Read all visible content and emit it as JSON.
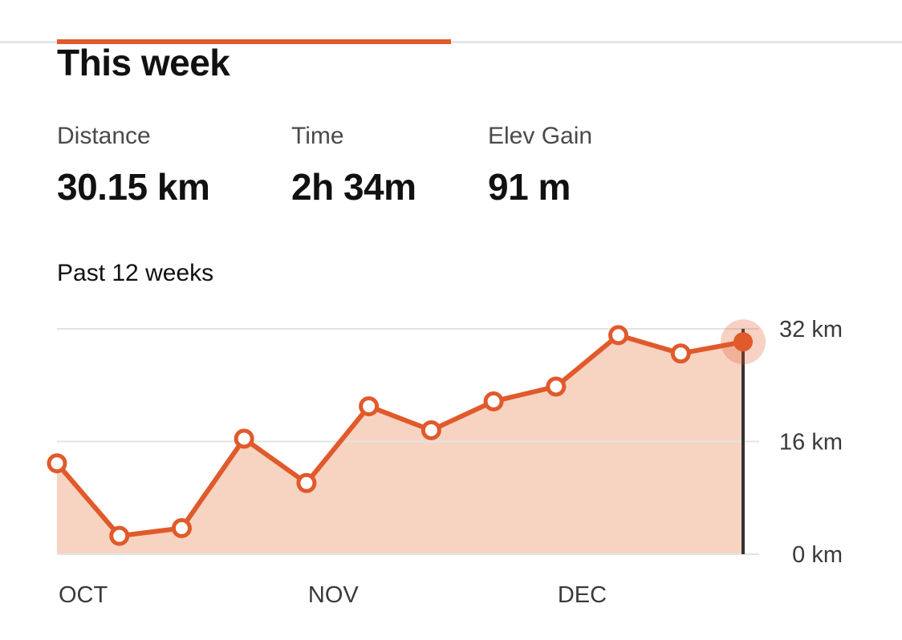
{
  "header": {
    "title": "This week"
  },
  "stats": [
    {
      "label": "Distance",
      "value": "30.15 km"
    },
    {
      "label": "Time",
      "value": "2h 34m"
    },
    {
      "label": "Elev Gain",
      "value": "91 m"
    }
  ],
  "chart_caption": "Past 12 weeks",
  "colors": {
    "accent": "#e05a2b",
    "fill": "#f7d3c2",
    "gridline": "#e3e3e3",
    "cursor": "#333333"
  },
  "chart_data": {
    "type": "area",
    "title": "",
    "xlabel": "",
    "ylabel": "",
    "x": [
      1,
      2,
      3,
      4,
      5,
      6,
      7,
      8,
      9,
      10,
      11,
      12
    ],
    "x_tick_labels": [
      {
        "x": 1,
        "label": "OCT"
      },
      {
        "x": 5,
        "label": "NOV"
      },
      {
        "x": 9,
        "label": "DEC"
      }
    ],
    "series": [
      {
        "values": [
          12.9,
          2.6,
          3.7,
          16.4,
          10.1,
          21.0,
          17.6,
          21.7,
          23.8,
          31.1,
          28.5,
          30.15
        ]
      }
    ],
    "ylim": [
      0,
      32
    ],
    "y_ticks": [
      {
        "value": 32,
        "label": "32 km"
      },
      {
        "value": 16,
        "label": "16 km"
      },
      {
        "value": 0,
        "label": "0 km"
      }
    ],
    "highlighted_index": 11,
    "grid": true
  }
}
